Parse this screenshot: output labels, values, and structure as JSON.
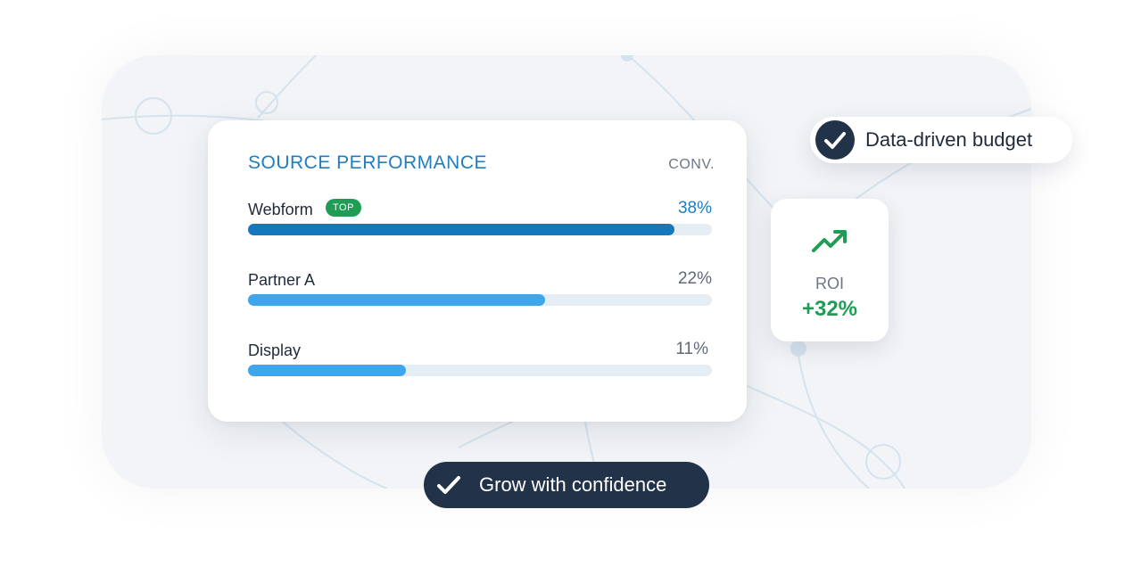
{
  "card": {
    "title": "SOURCE PERFORMANCE",
    "column_header": "CONV.",
    "rows": [
      {
        "name": "Webform",
        "badge": "TOP",
        "percent_label": "38%",
        "bar_fill_fraction": 0.92,
        "color": "#1578bd"
      },
      {
        "name": "Partner A",
        "percent_label": "22%",
        "bar_fill_fraction": 0.64,
        "color": "#3fa6ec"
      },
      {
        "name": "Display",
        "percent_label": "11%",
        "bar_fill_fraction": 0.34,
        "color": "#3fa6ec"
      }
    ]
  },
  "callout_top": {
    "icon": "checkmark-icon",
    "label": "Data-driven budget"
  },
  "roi": {
    "icon": "trending-up-icon",
    "label": "ROI",
    "value": "+32%",
    "color": "#1f9d55"
  },
  "callout_bottom": {
    "icon": "checkmark-icon",
    "label": "Grow with confidence"
  },
  "colors": {
    "accent": "#1f7dc0",
    "dark": "#223248",
    "green": "#1f9d55"
  }
}
